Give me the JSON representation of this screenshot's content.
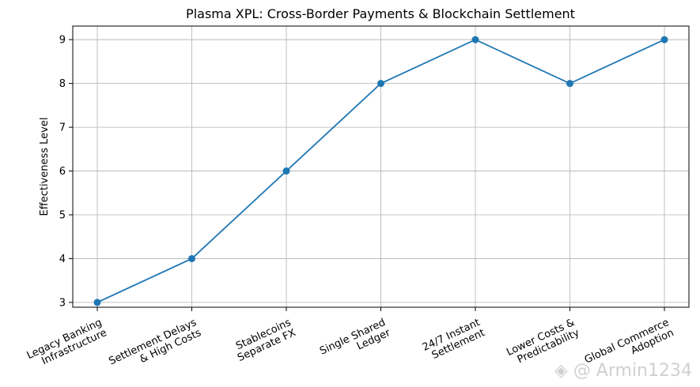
{
  "chart_data": {
    "type": "line",
    "title": "Plasma XPL: Cross-Border Payments & Blockchain Settlement",
    "xlabel": "",
    "ylabel": "Effectiveness Level",
    "categories": [
      [
        "Legacy Banking",
        "Infrastructure"
      ],
      [
        "Settlement Delays",
        "& High Costs"
      ],
      [
        "Stablecoins",
        "Separate FX"
      ],
      [
        "Single Shared",
        "Ledger"
      ],
      [
        "24/7 Instant",
        "Settlement"
      ],
      [
        "Lower Costs &",
        "Predictability"
      ],
      [
        "Global Commerce",
        "Adoption"
      ]
    ],
    "values": [
      3,
      4,
      6,
      8,
      9,
      8,
      9
    ],
    "ylim": [
      2.89,
      9.31
    ],
    "yticks": [
      3,
      4,
      5,
      6,
      7,
      8,
      9
    ],
    "grid": true,
    "line_color": "#1f77b4",
    "marker": "circle"
  },
  "watermark": {
    "text": "@ Armin1234",
    "icon": "diamond-logo-icon"
  }
}
